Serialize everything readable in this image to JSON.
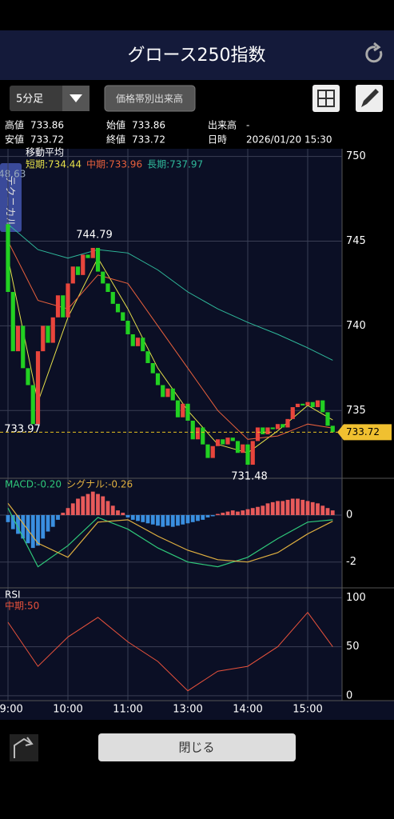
{
  "header": {
    "title": "グロース250指数"
  },
  "toolbar": {
    "interval": "5分足",
    "volume_button": "価格帯別出来高"
  },
  "info": [
    {
      "label": "高値",
      "value": "733.86"
    },
    {
      "label": "始値",
      "value": "733.86"
    },
    {
      "label": "出来高",
      "value": "-"
    },
    {
      "label": "安値",
      "value": "733.72"
    },
    {
      "label": "終値",
      "value": "733.72"
    },
    {
      "label": "日時",
      "value": "2026/01/20 15:30"
    }
  ],
  "side_tab": "テクニカル",
  "side_value": "48.63",
  "close_button": "閉じる",
  "chart_data": [
    {
      "type": "candlestick",
      "title": "移動平均",
      "up_color": "#e8453c",
      "down_color": "#22d022",
      "open": [
        746,
        742,
        738.5,
        740,
        737.5,
        736.5,
        734.2,
        738.5,
        740,
        739,
        740.5,
        741.8,
        740.5,
        742.5,
        743.5,
        743,
        744.2,
        744,
        744.6,
        743.2,
        742.5,
        742,
        741.3,
        740.8,
        740.3,
        739.5,
        738.8,
        739.3,
        738.5,
        737.8,
        737.2,
        736.5,
        735.8,
        736.3,
        735.6,
        734.6,
        735.4,
        734.4,
        733.3,
        734,
        733,
        732.2,
        732.9,
        733.3,
        733,
        733.4,
        733.2,
        732.5,
        733,
        731.8,
        733.2,
        734,
        733.6,
        734,
        733.9,
        734.2,
        734,
        734.5,
        735.2,
        735.4,
        735.3,
        735.5,
        735.2,
        735.6,
        734.9,
        734.1
      ],
      "close": [
        742,
        738.5,
        740,
        737.5,
        736.5,
        734.2,
        738.5,
        740,
        739,
        740.5,
        741.8,
        740.5,
        742.5,
        743.5,
        743,
        744.2,
        744,
        744.6,
        743.2,
        742.5,
        742,
        741.3,
        740.8,
        740.3,
        739.5,
        738.8,
        739.3,
        738.5,
        737.8,
        737.2,
        736.5,
        735.8,
        736.3,
        735.6,
        734.6,
        735.4,
        734.4,
        733.3,
        734,
        733,
        732.2,
        732.9,
        733.3,
        733,
        733.4,
        733.2,
        732.5,
        733,
        731.8,
        733.2,
        734,
        733.6,
        734,
        733.9,
        734.2,
        734,
        734.5,
        735.2,
        735.4,
        735.3,
        735.5,
        735.2,
        735.6,
        734.9,
        734.1,
        733.72
      ],
      "ylim": [
        731,
        750.5
      ],
      "yticks": [
        750,
        745,
        740,
        735
      ],
      "xticks": [
        {
          "value": 0,
          "label": "09:00"
        },
        {
          "value": 12,
          "label": "10:00"
        },
        {
          "value": 24,
          "label": "11:00"
        },
        {
          "value": 36,
          "label": "13:00"
        },
        {
          "value": 48,
          "label": "14:00"
        },
        {
          "value": 60,
          "label": "15:00"
        }
      ],
      "series": [
        {
          "name": "短期:734.44",
          "color": "#e6e04a",
          "x": [
            0,
            6,
            12,
            18,
            24,
            30,
            36,
            42,
            48,
            54,
            60,
            65
          ],
          "values": [
            744,
            735.5,
            740.5,
            744,
            741,
            737.5,
            735,
            733,
            732.5,
            733.8,
            735.3,
            734.44
          ]
        },
        {
          "name": "中期:733.96",
          "color": "#e8603c",
          "x": [
            0,
            6,
            12,
            18,
            24,
            30,
            36,
            42,
            48,
            54,
            60,
            65
          ],
          "values": [
            745,
            741.5,
            741,
            743,
            742.5,
            740,
            737.5,
            735,
            733.3,
            733.5,
            734.2,
            733.96
          ]
        },
        {
          "name": "長期:737.97",
          "color": "#2fb89a",
          "x": [
            0,
            6,
            12,
            18,
            24,
            30,
            36,
            42,
            48,
            54,
            60,
            65
          ],
          "values": [
            746,
            744.5,
            744,
            744.5,
            744.3,
            743.3,
            742,
            741,
            740.2,
            739.5,
            738.7,
            737.97
          ]
        }
      ],
      "annotations": [
        744.79,
        733.97,
        731.48
      ],
      "last_price": 733.72
    },
    {
      "type": "macd",
      "pos_color": "#e85a5a",
      "neg_color": "#3a8fe0",
      "ylim": [
        -3.1,
        1.5
      ],
      "yticks": [
        0,
        -2
      ],
      "histogram": [
        -0.3,
        -0.6,
        -0.8,
        -1.0,
        -1.2,
        -1.4,
        -1.3,
        -1.0,
        -0.7,
        -0.5,
        -0.2,
        0.1,
        0.3,
        0.5,
        0.7,
        0.8,
        0.9,
        1.0,
        0.9,
        0.8,
        0.6,
        0.4,
        0.2,
        0.1,
        -0.1,
        -0.2,
        -0.25,
        -0.3,
        -0.35,
        -0.4,
        -0.45,
        -0.5,
        -0.45,
        -0.5,
        -0.45,
        -0.4,
        -0.35,
        -0.3,
        -0.25,
        -0.2,
        -0.1,
        -0.05,
        0.05,
        0.1,
        0.15,
        0.2,
        0.15,
        0.2,
        0.25,
        0.3,
        0.35,
        0.4,
        0.5,
        0.55,
        0.6,
        0.6,
        0.65,
        0.7,
        0.7,
        0.65,
        0.6,
        0.55,
        0.5,
        0.4,
        0.3,
        0.2
      ],
      "series": [
        {
          "name": "MACD:-0.20",
          "color": "#2fc87a",
          "x": [
            0,
            6,
            12,
            18,
            24,
            30,
            36,
            42,
            48,
            54,
            60,
            65
          ],
          "values": [
            0.3,
            -2.2,
            -1.3,
            -0.1,
            -0.6,
            -1.4,
            -2.0,
            -2.2,
            -1.8,
            -1.0,
            -0.3,
            -0.2
          ]
        },
        {
          "name": "シグナル:-0.26",
          "color": "#e0b040",
          "x": [
            0,
            6,
            12,
            18,
            24,
            30,
            36,
            42,
            48,
            54,
            60,
            65
          ],
          "values": [
            0.5,
            -1.2,
            -1.8,
            -0.3,
            -0.2,
            -0.9,
            -1.5,
            -1.9,
            -2.0,
            -1.6,
            -0.8,
            -0.26
          ]
        }
      ]
    },
    {
      "type": "line",
      "title": "RSI",
      "ylim": [
        -5,
        106
      ],
      "yticks": [
        100,
        50,
        0
      ],
      "series": [
        {
          "name": "中期:50",
          "color": "#e8523c",
          "x": [
            0,
            6,
            12,
            18,
            24,
            30,
            36,
            42,
            48,
            54,
            60,
            65
          ],
          "values": [
            75,
            30,
            60,
            80,
            55,
            35,
            5,
            25,
            30,
            50,
            85,
            50
          ]
        }
      ]
    }
  ]
}
